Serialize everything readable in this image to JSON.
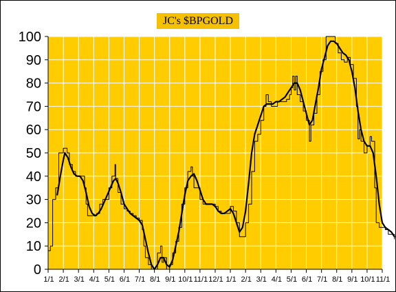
{
  "chart_data": {
    "type": "line",
    "title": "JC's $BPGOLD",
    "xlabel": "",
    "ylabel": "",
    "ylim": [
      0,
      100
    ],
    "yticks": [
      0,
      10,
      20,
      30,
      40,
      50,
      60,
      70,
      80,
      90,
      100
    ],
    "xtick_labels": [
      "1/1",
      "2/1",
      "3/1",
      "4/1",
      "5/1",
      "6/1",
      "7/1",
      "8/1",
      "9/1",
      "10/1",
      "11/1",
      "12/1",
      "1/1",
      "2/1",
      "3/1",
      "4/1",
      "5/1",
      "6/1",
      "7/1",
      "8/1",
      "9/1",
      "10/1",
      "11/1"
    ],
    "grid": true,
    "colors": {
      "plot_background": "#ffcc00",
      "title_background": "#f5c000",
      "grid": "#ffffff",
      "lines": "#000000"
    },
    "series": [
      {
        "style": "thin-step",
        "points": [
          [
            0,
            8
          ],
          [
            0.15,
            10
          ],
          [
            0.3,
            30
          ],
          [
            0.5,
            35
          ],
          [
            0.7,
            50
          ],
          [
            0.9,
            50
          ],
          [
            1.0,
            52
          ],
          [
            1.1,
            52
          ],
          [
            1.25,
            50
          ],
          [
            1.4,
            45
          ],
          [
            1.6,
            42
          ],
          [
            1.8,
            40
          ],
          [
            2.0,
            40
          ],
          [
            2.2,
            40
          ],
          [
            2.4,
            35
          ],
          [
            2.5,
            28
          ],
          [
            2.6,
            23
          ],
          [
            2.8,
            23
          ],
          [
            3.0,
            23
          ],
          [
            3.2,
            24
          ],
          [
            3.4,
            28
          ],
          [
            3.6,
            30
          ],
          [
            3.8,
            30
          ],
          [
            4.0,
            35
          ],
          [
            4.2,
            40
          ],
          [
            4.4,
            45
          ],
          [
            4.45,
            39
          ],
          [
            4.6,
            33
          ],
          [
            4.8,
            28
          ],
          [
            5.0,
            26
          ],
          [
            5.2,
            25
          ],
          [
            5.4,
            24
          ],
          [
            5.6,
            23
          ],
          [
            5.8,
            22
          ],
          [
            6.0,
            21
          ],
          [
            6.2,
            17
          ],
          [
            6.3,
            10
          ],
          [
            6.4,
            5
          ],
          [
            6.6,
            2
          ],
          [
            6.8,
            0
          ],
          [
            7.0,
            0
          ],
          [
            7.2,
            7
          ],
          [
            7.4,
            10
          ],
          [
            7.5,
            3
          ],
          [
            7.6,
            5
          ],
          [
            7.8,
            0
          ],
          [
            8.0,
            2
          ],
          [
            8.2,
            7
          ],
          [
            8.4,
            12
          ],
          [
            8.6,
            18
          ],
          [
            8.8,
            28
          ],
          [
            9.0,
            35
          ],
          [
            9.2,
            42
          ],
          [
            9.4,
            44
          ],
          [
            9.5,
            40
          ],
          [
            9.6,
            35
          ],
          [
            9.8,
            35
          ],
          [
            10.0,
            30
          ],
          [
            10.2,
            28
          ],
          [
            10.5,
            28
          ],
          [
            10.7,
            28
          ],
          [
            11.0,
            27
          ],
          [
            11.2,
            25
          ],
          [
            11.4,
            24
          ],
          [
            11.6,
            24
          ],
          [
            11.8,
            24
          ],
          [
            12.0,
            27
          ],
          [
            12.2,
            25
          ],
          [
            12.4,
            20
          ],
          [
            12.6,
            14
          ],
          [
            12.8,
            14
          ],
          [
            13.0,
            20
          ],
          [
            13.2,
            28
          ],
          [
            13.4,
            42
          ],
          [
            13.6,
            55
          ],
          [
            13.8,
            58
          ],
          [
            14.0,
            64
          ],
          [
            14.2,
            70
          ],
          [
            14.35,
            75
          ],
          [
            14.5,
            72
          ],
          [
            14.7,
            70
          ],
          [
            14.9,
            70
          ],
          [
            15.1,
            72
          ],
          [
            15.3,
            72
          ],
          [
            15.5,
            72
          ],
          [
            15.7,
            73
          ],
          [
            15.9,
            75
          ],
          [
            16.0,
            78
          ],
          [
            16.1,
            83
          ],
          [
            16.2,
            77
          ],
          [
            16.3,
            83
          ],
          [
            16.4,
            75
          ],
          [
            16.6,
            72
          ],
          [
            16.8,
            68
          ],
          [
            17.0,
            64
          ],
          [
            17.2,
            55
          ],
          [
            17.3,
            62
          ],
          [
            17.5,
            67
          ],
          [
            17.7,
            75
          ],
          [
            17.9,
            85
          ],
          [
            18.1,
            90
          ],
          [
            18.3,
            100
          ],
          [
            18.5,
            100
          ],
          [
            18.7,
            100
          ],
          [
            18.9,
            97
          ],
          [
            19.1,
            93
          ],
          [
            19.3,
            90
          ],
          [
            19.5,
            89
          ],
          [
            19.7,
            91
          ],
          [
            19.9,
            88
          ],
          [
            20.1,
            82
          ],
          [
            20.3,
            70
          ],
          [
            20.4,
            56
          ],
          [
            20.5,
            60
          ],
          [
            20.6,
            55
          ],
          [
            20.8,
            50
          ],
          [
            21.0,
            53
          ],
          [
            21.2,
            57
          ],
          [
            21.3,
            55
          ],
          [
            21.5,
            35
          ],
          [
            21.6,
            20
          ],
          [
            21.8,
            18
          ],
          [
            22.0,
            18
          ],
          [
            22.2,
            17
          ],
          [
            22.4,
            15
          ],
          [
            22.6,
            15
          ],
          [
            22.8,
            13
          ]
        ]
      },
      {
        "style": "thick-smooth",
        "points": [
          [
            0.6,
            32
          ],
          [
            0.8,
            40
          ],
          [
            1.0,
            47
          ],
          [
            1.1,
            50
          ],
          [
            1.3,
            48
          ],
          [
            1.5,
            44
          ],
          [
            1.7,
            41
          ],
          [
            1.9,
            40
          ],
          [
            2.1,
            40
          ],
          [
            2.3,
            38
          ],
          [
            2.5,
            33
          ],
          [
            2.7,
            27
          ],
          [
            2.9,
            24
          ],
          [
            3.1,
            23
          ],
          [
            3.3,
            24
          ],
          [
            3.5,
            26
          ],
          [
            3.7,
            29
          ],
          [
            3.9,
            32
          ],
          [
            4.1,
            35
          ],
          [
            4.3,
            38
          ],
          [
            4.45,
            39
          ],
          [
            4.6,
            37
          ],
          [
            4.8,
            33
          ],
          [
            5.0,
            28
          ],
          [
            5.2,
            26
          ],
          [
            5.4,
            24
          ],
          [
            5.6,
            23
          ],
          [
            5.8,
            22
          ],
          [
            6.0,
            21
          ],
          [
            6.2,
            19
          ],
          [
            6.4,
            13
          ],
          [
            6.6,
            7
          ],
          [
            6.8,
            2
          ],
          [
            7.0,
            0
          ],
          [
            7.2,
            2
          ],
          [
            7.4,
            5
          ],
          [
            7.6,
            5
          ],
          [
            7.8,
            2
          ],
          [
            8.0,
            1
          ],
          [
            8.2,
            4
          ],
          [
            8.4,
            10
          ],
          [
            8.6,
            16
          ],
          [
            8.8,
            24
          ],
          [
            9.0,
            32
          ],
          [
            9.2,
            38
          ],
          [
            9.4,
            40
          ],
          [
            9.6,
            41
          ],
          [
            9.8,
            38
          ],
          [
            10.0,
            34
          ],
          [
            10.2,
            30
          ],
          [
            10.4,
            28
          ],
          [
            10.6,
            28
          ],
          [
            10.8,
            28
          ],
          [
            11.0,
            27
          ],
          [
            11.2,
            25
          ],
          [
            11.4,
            24
          ],
          [
            11.6,
            24
          ],
          [
            11.8,
            25
          ],
          [
            12.0,
            26
          ],
          [
            12.2,
            24
          ],
          [
            12.4,
            20
          ],
          [
            12.6,
            16
          ],
          [
            12.8,
            18
          ],
          [
            13.0,
            25
          ],
          [
            13.2,
            37
          ],
          [
            13.4,
            50
          ],
          [
            13.6,
            58
          ],
          [
            13.8,
            62
          ],
          [
            14.0,
            66
          ],
          [
            14.2,
            70
          ],
          [
            14.4,
            71
          ],
          [
            14.6,
            71
          ],
          [
            14.8,
            71
          ],
          [
            15.0,
            72
          ],
          [
            15.2,
            72
          ],
          [
            15.4,
            73
          ],
          [
            15.6,
            74
          ],
          [
            15.8,
            76
          ],
          [
            16.0,
            78
          ],
          [
            16.2,
            80
          ],
          [
            16.4,
            80
          ],
          [
            16.6,
            77
          ],
          [
            16.8,
            72
          ],
          [
            17.0,
            67
          ],
          [
            17.2,
            62
          ],
          [
            17.4,
            64
          ],
          [
            17.6,
            71
          ],
          [
            17.8,
            78
          ],
          [
            18.0,
            86
          ],
          [
            18.2,
            91
          ],
          [
            18.4,
            96
          ],
          [
            18.6,
            98
          ],
          [
            18.8,
            98
          ],
          [
            19.0,
            97
          ],
          [
            19.2,
            95
          ],
          [
            19.4,
            93
          ],
          [
            19.6,
            92
          ],
          [
            19.8,
            90
          ],
          [
            20.0,
            85
          ],
          [
            20.2,
            78
          ],
          [
            20.4,
            68
          ],
          [
            20.6,
            60
          ],
          [
            20.8,
            55
          ],
          [
            21.0,
            53
          ],
          [
            21.2,
            53
          ],
          [
            21.4,
            50
          ],
          [
            21.6,
            40
          ],
          [
            21.8,
            28
          ],
          [
            22.0,
            20
          ],
          [
            22.2,
            18
          ],
          [
            22.4,
            17
          ],
          [
            22.6,
            16
          ],
          [
            22.8,
            14
          ]
        ]
      }
    ]
  }
}
